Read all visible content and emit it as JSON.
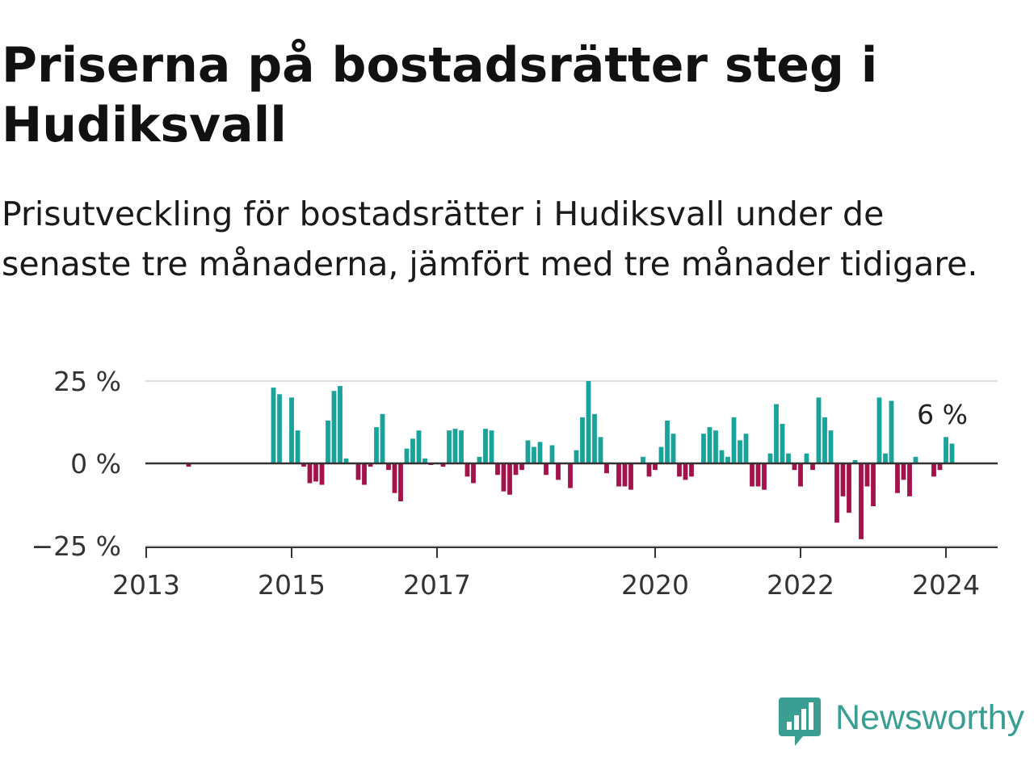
{
  "title": "Priserna på bostadsrätter steg i Hudiksvall",
  "subtitle": "Prisutveckling för bostadsrätter i Hudiksvall under de senaste tre månaderna, jämfört med tre månader tidigare.",
  "brand": {
    "name": "Newsworthy",
    "color": "#3a9e93",
    "icon": "bar-chart-bubble-icon"
  },
  "colors": {
    "positive": "#1aa39b",
    "negative": "#a3124a",
    "zero_line": "#333333",
    "grid": "#dddddd"
  },
  "chart_data": {
    "type": "bar",
    "title": "Priserna på bostadsrätter steg i Hudiksvall",
    "subtitle": "Prisutveckling för bostadsrätter i Hudiksvall under de senaste tre månaderna, jämfört med tre månader tidigare.",
    "xlabel": "",
    "ylabel": "",
    "unit": "%",
    "ylim": [
      -25,
      25
    ],
    "y_ticks": [
      {
        "value": 25,
        "label": "25 %"
      },
      {
        "value": 0,
        "label": "0 %"
      },
      {
        "value": -25,
        "label": "−25 %"
      }
    ],
    "x_ticks": [
      {
        "value": "2013-01",
        "label": "2013"
      },
      {
        "value": "2015-01",
        "label": "2015"
      },
      {
        "value": "2017-01",
        "label": "2017"
      },
      {
        "value": "2020-01",
        "label": "2020"
      },
      {
        "value": "2022-01",
        "label": "2022"
      },
      {
        "value": "2024-01",
        "label": "2024"
      }
    ],
    "grid": true,
    "legend": "none",
    "annotation": {
      "date": "2024-03",
      "label": "6 %"
    },
    "bars": [
      {
        "date": "2013-08",
        "value": -1
      },
      {
        "date": "2014-10",
        "value": 23
      },
      {
        "date": "2014-11",
        "value": 21
      },
      {
        "date": "2015-01",
        "value": 20
      },
      {
        "date": "2015-02",
        "value": 10
      },
      {
        "date": "2015-03",
        "value": -1
      },
      {
        "date": "2015-04",
        "value": -6
      },
      {
        "date": "2015-05",
        "value": -5.5
      },
      {
        "date": "2015-06",
        "value": -6.5
      },
      {
        "date": "2015-07",
        "value": 13
      },
      {
        "date": "2015-08",
        "value": 22
      },
      {
        "date": "2015-09",
        "value": 23.5
      },
      {
        "date": "2015-10",
        "value": 1.5
      },
      {
        "date": "2015-12",
        "value": -5
      },
      {
        "date": "2016-01",
        "value": -6.5
      },
      {
        "date": "2016-02",
        "value": -1
      },
      {
        "date": "2016-03",
        "value": 11
      },
      {
        "date": "2016-04",
        "value": 15
      },
      {
        "date": "2016-05",
        "value": -2
      },
      {
        "date": "2016-06",
        "value": -9
      },
      {
        "date": "2016-07",
        "value": -11.5
      },
      {
        "date": "2016-08",
        "value": 4.5
      },
      {
        "date": "2016-09",
        "value": 7.5
      },
      {
        "date": "2016-10",
        "value": 10
      },
      {
        "date": "2016-11",
        "value": 1.5
      },
      {
        "date": "2016-12",
        "value": -0.5
      },
      {
        "date": "2017-02",
        "value": -1
      },
      {
        "date": "2017-03",
        "value": 10
      },
      {
        "date": "2017-04",
        "value": 10.5
      },
      {
        "date": "2017-05",
        "value": 10
      },
      {
        "date": "2017-06",
        "value": -4
      },
      {
        "date": "2017-07",
        "value": -6
      },
      {
        "date": "2017-08",
        "value": 2
      },
      {
        "date": "2017-09",
        "value": 10.5
      },
      {
        "date": "2017-10",
        "value": 10
      },
      {
        "date": "2017-11",
        "value": -3.5
      },
      {
        "date": "2017-12",
        "value": -8.5
      },
      {
        "date": "2018-01",
        "value": -9.5
      },
      {
        "date": "2018-02",
        "value": -3.5
      },
      {
        "date": "2018-03",
        "value": -2
      },
      {
        "date": "2018-04",
        "value": 7
      },
      {
        "date": "2018-05",
        "value": 5
      },
      {
        "date": "2018-06",
        "value": 6.5
      },
      {
        "date": "2018-07",
        "value": -3.5
      },
      {
        "date": "2018-08",
        "value": 5.5
      },
      {
        "date": "2018-09",
        "value": -5
      },
      {
        "date": "2018-11",
        "value": -7.5
      },
      {
        "date": "2018-12",
        "value": 4
      },
      {
        "date": "2019-01",
        "value": 14
      },
      {
        "date": "2019-02",
        "value": 25
      },
      {
        "date": "2019-03",
        "value": 15
      },
      {
        "date": "2019-04",
        "value": 8
      },
      {
        "date": "2019-05",
        "value": -3
      },
      {
        "date": "2019-07",
        "value": -7
      },
      {
        "date": "2019-08",
        "value": -7
      },
      {
        "date": "2019-09",
        "value": -8
      },
      {
        "date": "2019-11",
        "value": 2
      },
      {
        "date": "2019-12",
        "value": -4
      },
      {
        "date": "2020-01",
        "value": -2
      },
      {
        "date": "2020-02",
        "value": 5
      },
      {
        "date": "2020-03",
        "value": 13
      },
      {
        "date": "2020-04",
        "value": 9
      },
      {
        "date": "2020-05",
        "value": -4
      },
      {
        "date": "2020-06",
        "value": -5
      },
      {
        "date": "2020-07",
        "value": -4
      },
      {
        "date": "2020-09",
        "value": 9
      },
      {
        "date": "2020-10",
        "value": 11
      },
      {
        "date": "2020-11",
        "value": 10
      },
      {
        "date": "2020-12",
        "value": 4
      },
      {
        "date": "2021-01",
        "value": 2
      },
      {
        "date": "2021-02",
        "value": 14
      },
      {
        "date": "2021-03",
        "value": 7
      },
      {
        "date": "2021-04",
        "value": 9
      },
      {
        "date": "2021-05",
        "value": -7
      },
      {
        "date": "2021-06",
        "value": -7
      },
      {
        "date": "2021-07",
        "value": -8
      },
      {
        "date": "2021-08",
        "value": 3
      },
      {
        "date": "2021-09",
        "value": 18
      },
      {
        "date": "2021-10",
        "value": 12
      },
      {
        "date": "2021-11",
        "value": 3
      },
      {
        "date": "2021-12",
        "value": -2
      },
      {
        "date": "2022-01",
        "value": -7
      },
      {
        "date": "2022-02",
        "value": 3
      },
      {
        "date": "2022-03",
        "value": -2
      },
      {
        "date": "2022-04",
        "value": 20
      },
      {
        "date": "2022-05",
        "value": 14
      },
      {
        "date": "2022-06",
        "value": 10
      },
      {
        "date": "2022-07",
        "value": -18
      },
      {
        "date": "2022-08",
        "value": -10
      },
      {
        "date": "2022-09",
        "value": -15
      },
      {
        "date": "2022-10",
        "value": 1
      },
      {
        "date": "2022-11",
        "value": -23
      },
      {
        "date": "2022-12",
        "value": -7
      },
      {
        "date": "2023-01",
        "value": -13
      },
      {
        "date": "2023-02",
        "value": 20
      },
      {
        "date": "2023-03",
        "value": 3
      },
      {
        "date": "2023-04",
        "value": 19
      },
      {
        "date": "2023-05",
        "value": -9
      },
      {
        "date": "2023-06",
        "value": -5
      },
      {
        "date": "2023-07",
        "value": -10
      },
      {
        "date": "2023-08",
        "value": 2
      },
      {
        "date": "2023-11",
        "value": -4
      },
      {
        "date": "2023-12",
        "value": -2
      },
      {
        "date": "2024-01",
        "value": 8
      },
      {
        "date": "2024-02",
        "value": 6
      }
    ]
  }
}
